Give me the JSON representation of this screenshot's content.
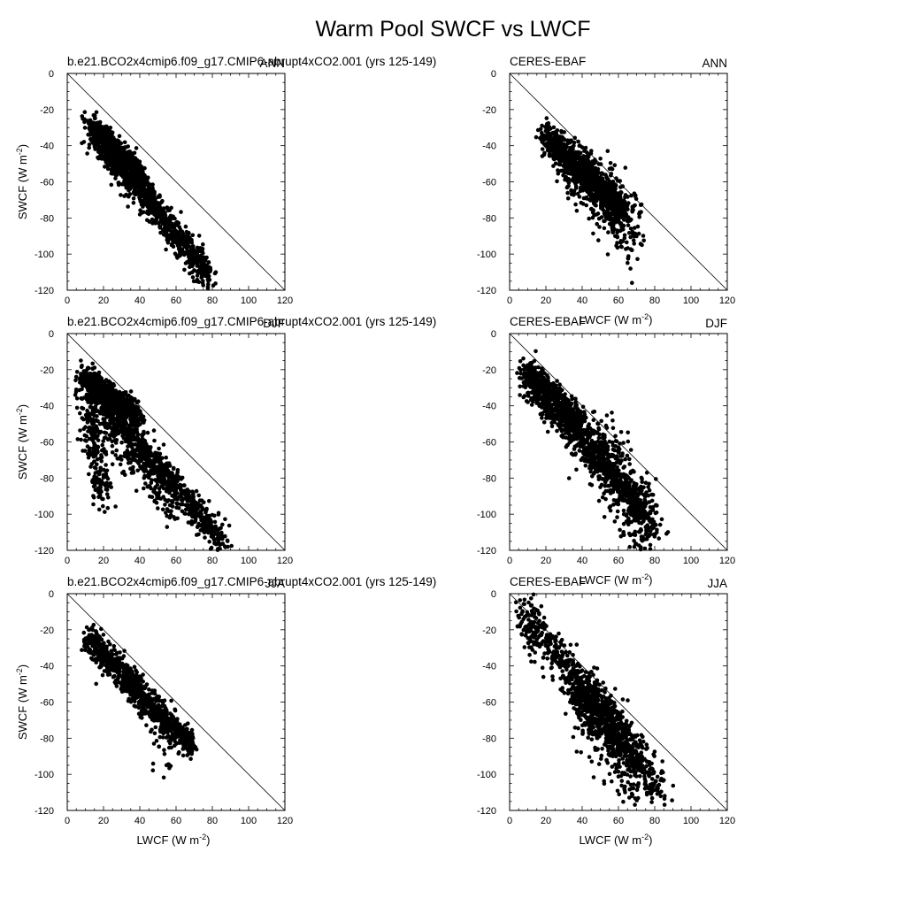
{
  "title": "Warm Pool SWCF vs LWCF",
  "axis": {
    "xlabel_main": "LWCF (W m",
    "ylabel_main": "SWCF (W m",
    "unit_exp": "-2",
    "unit_close": ")",
    "xlim": [
      0,
      120
    ],
    "ylim": [
      -120,
      0
    ],
    "xticks": [
      0,
      20,
      40,
      60,
      80,
      100,
      120
    ],
    "yticks": [
      0,
      -20,
      -40,
      -60,
      -80,
      -100,
      -120
    ]
  },
  "chart_data": [
    {
      "type": "scatter",
      "source": "b.e21.BCO2x4cmip6.f09_g17.CMIP6-abrupt4xCO2.001 (yrs 125-149)",
      "season": "ANN",
      "xlim": [
        0,
        120
      ],
      "ylim": [
        -120,
        0
      ],
      "reference_line": [
        [
          0,
          0
        ],
        [
          120,
          -120
        ]
      ],
      "clusters": [
        {
          "x": [
            12,
            78
          ],
          "y": [
            -28,
            -112
          ],
          "spread": 4,
          "n": 900
        },
        {
          "x": [
            14,
            40
          ],
          "y": [
            -30,
            -55
          ],
          "spread": 3,
          "n": 500
        },
        {
          "x": [
            18,
            50
          ],
          "y": [
            -40,
            -72
          ],
          "spread": 5,
          "n": 200
        }
      ]
    },
    {
      "type": "scatter",
      "source": "CERES-EBAF",
      "season": "ANN",
      "xlim": [
        0,
        120
      ],
      "ylim": [
        -120,
        0
      ],
      "reference_line": [
        [
          0,
          0
        ],
        [
          120,
          -120
        ]
      ],
      "clusters": [
        {
          "x": [
            20,
            62
          ],
          "y": [
            -35,
            -75
          ],
          "spread": 4,
          "n": 1000
        },
        {
          "x": [
            30,
            68
          ],
          "y": [
            -48,
            -85
          ],
          "spread": 8,
          "n": 350
        },
        {
          "x": [
            45,
            70
          ],
          "y": [
            -62,
            -100
          ],
          "spread": 6,
          "n": 80
        }
      ]
    },
    {
      "type": "scatter",
      "source": "b.e21.BCO2x4cmip6.f09_g17.CMIP6-abrupt4xCO2.001 (yrs 125-149)",
      "season": "DJF",
      "xlim": [
        0,
        120
      ],
      "ylim": [
        -120,
        0
      ],
      "reference_line": [
        [
          0,
          0
        ],
        [
          120,
          -120
        ]
      ],
      "clusters": [
        {
          "x": [
            8,
            87
          ],
          "y": [
            -22,
            -118
          ],
          "spread": 4,
          "n": 900
        },
        {
          "x": [
            10,
            40
          ],
          "y": [
            -24,
            -45
          ],
          "spread": 3,
          "n": 500
        },
        {
          "x": [
            10,
            20
          ],
          "y": [
            -30,
            -92
          ],
          "spread": 5,
          "n": 220
        },
        {
          "x": [
            18,
            60
          ],
          "y": [
            -45,
            -95
          ],
          "spread": 6,
          "n": 300
        }
      ]
    },
    {
      "type": "scatter",
      "source": "CERES-EBAF",
      "season": "DJF",
      "xlim": [
        0,
        120
      ],
      "ylim": [
        -120,
        0
      ],
      "reference_line": [
        [
          0,
          0
        ],
        [
          120,
          -120
        ]
      ],
      "clusters": [
        {
          "x": [
            8,
            75
          ],
          "y": [
            -22,
            -100
          ],
          "spread": 5,
          "n": 900
        },
        {
          "x": [
            10,
            40
          ],
          "y": [
            -22,
            -50
          ],
          "spread": 4,
          "n": 300
        },
        {
          "x": [
            45,
            80
          ],
          "y": [
            -55,
            -115
          ],
          "spread": 9,
          "n": 400
        }
      ]
    },
    {
      "type": "scatter",
      "source": "b.e21.BCO2x4cmip6.f09_g17.CMIP6-abrupt4xCO2.001 (yrs 125-149)",
      "season": "JJA",
      "xlim": [
        0,
        120
      ],
      "ylim": [
        -120,
        0
      ],
      "reference_line": [
        [
          0,
          0
        ],
        [
          120,
          -120
        ]
      ],
      "clusters": [
        {
          "x": [
            12,
            68
          ],
          "y": [
            -25,
            -85
          ],
          "spread": 4,
          "n": 900
        },
        {
          "x": [
            40,
            55
          ],
          "y": [
            -55,
            -100
          ],
          "spread": 5,
          "n": 40
        }
      ]
    },
    {
      "type": "scatter",
      "source": "CERES-EBAF",
      "season": "JJA",
      "xlim": [
        0,
        120
      ],
      "ylim": [
        -120,
        0
      ],
      "reference_line": [
        [
          0,
          0
        ],
        [
          120,
          -120
        ]
      ],
      "clusters": [
        {
          "x": [
            8,
            82
          ],
          "y": [
            -12,
            -108
          ],
          "spread": 6,
          "n": 800
        },
        {
          "x": [
            38,
            65
          ],
          "y": [
            -50,
            -82
          ],
          "spread": 6,
          "n": 400
        },
        {
          "x": [
            35,
            70
          ],
          "y": [
            -60,
            -110
          ],
          "spread": 7,
          "n": 150
        }
      ]
    }
  ]
}
